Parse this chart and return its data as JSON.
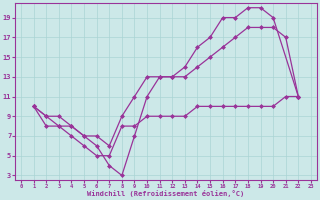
{
  "xlabel": "Windchill (Refroidissement éolien,°C)",
  "bg_color": "#cce8e8",
  "line_color": "#993399",
  "grid_color": "#aad4d4",
  "xlim": [
    -0.5,
    23.5
  ],
  "ylim": [
    2.5,
    20.5
  ],
  "xticks": [
    0,
    1,
    2,
    3,
    4,
    5,
    6,
    7,
    8,
    9,
    10,
    11,
    12,
    13,
    14,
    15,
    16,
    17,
    18,
    19,
    20,
    21,
    22,
    23
  ],
  "yticks": [
    3,
    5,
    7,
    9,
    11,
    13,
    15,
    17,
    19
  ],
  "series": [
    {
      "x": [
        1,
        2,
        3,
        4,
        5,
        6,
        7,
        8,
        9,
        10,
        11,
        12,
        13,
        14,
        15,
        16,
        17,
        18,
        19,
        20,
        22
      ],
      "y": [
        10,
        9,
        8,
        8,
        7,
        6,
        4,
        3,
        7,
        11,
        13,
        13,
        14,
        16,
        17,
        19,
        19,
        20,
        20,
        19,
        11
      ],
      "marker": "D"
    },
    {
      "x": [
        1,
        2,
        3,
        4,
        5,
        6,
        7,
        8,
        9,
        10,
        11,
        12,
        13,
        14,
        15,
        16,
        17,
        18,
        19,
        20,
        21,
        22
      ],
      "y": [
        10,
        9,
        9,
        8,
        7,
        7,
        6,
        9,
        11,
        13,
        13,
        13,
        13,
        14,
        15,
        16,
        17,
        18,
        18,
        18,
        17,
        11
      ],
      "marker": "D"
    },
    {
      "x": [
        1,
        2,
        3,
        4,
        5,
        6,
        7,
        8,
        9,
        10,
        11,
        12,
        13,
        14,
        15,
        16,
        17,
        18,
        19,
        20,
        21,
        22
      ],
      "y": [
        10,
        8,
        8,
        7,
        6,
        5,
        5,
        8,
        8,
        9,
        9,
        9,
        9,
        10,
        10,
        10,
        10,
        10,
        10,
        10,
        11,
        11
      ],
      "marker": "D"
    }
  ]
}
